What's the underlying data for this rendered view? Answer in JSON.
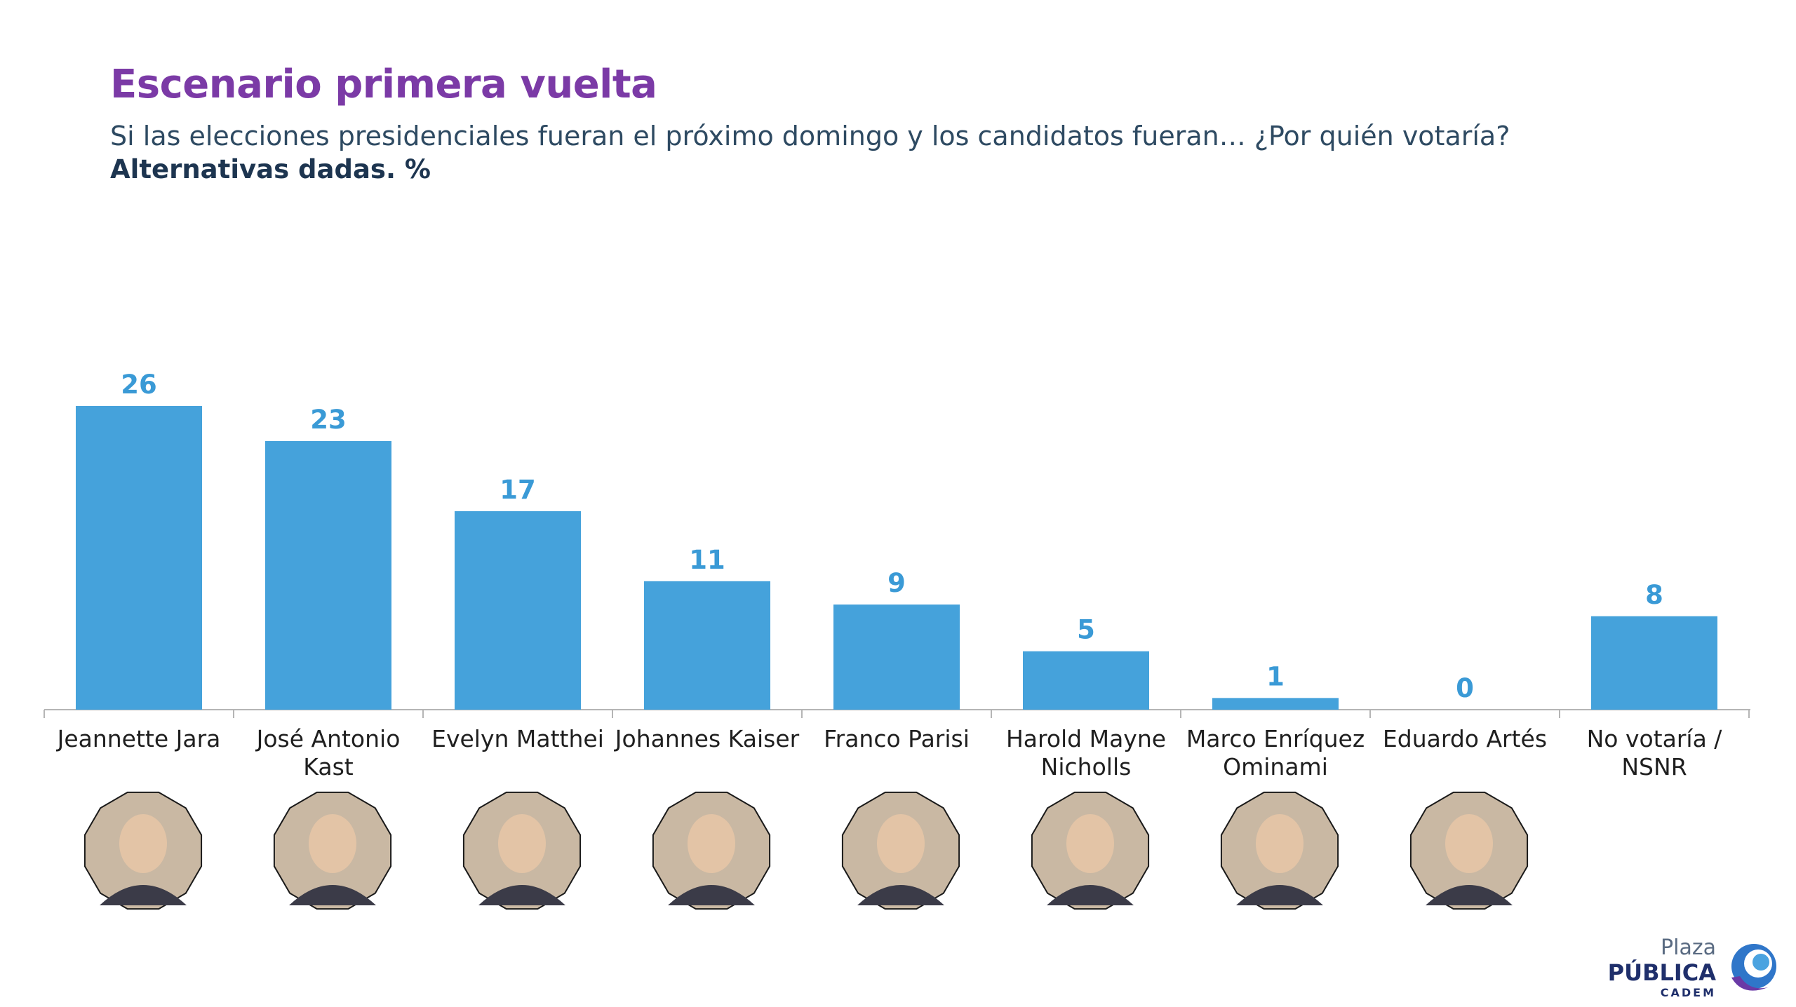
{
  "header": {
    "title": "Escenario primera vuelta",
    "subtitle": "Si las elecciones presidenciales fueran el próximo domingo y los candidatos fueran… ¿Por quién votaría?",
    "note": "Alternativas dadas. %"
  },
  "colors": {
    "title": "#7b3aa6",
    "bar": "#45a2db",
    "value_label": "#3a9ad6",
    "axis": "#b5b5b5"
  },
  "logo": {
    "line1": "Plaza",
    "line2": "PÚBLICA",
    "line3": "CADEM"
  },
  "chart_data": {
    "type": "bar",
    "categories": [
      [
        "Jeannette Jara"
      ],
      [
        "José Antonio",
        "Kast"
      ],
      [
        "Evelyn Matthei"
      ],
      [
        "Johannes Kaiser"
      ],
      [
        "Franco Parisi"
      ],
      [
        "Harold Mayne",
        "Nicholls"
      ],
      [
        "Marco Enríquez",
        "Ominami"
      ],
      [
        "Eduardo Artés"
      ],
      [
        "No votaría /",
        "NSNR"
      ]
    ],
    "values": [
      26,
      23,
      17,
      11,
      9,
      5,
      1,
      0,
      8
    ],
    "photos": [
      true,
      true,
      true,
      true,
      true,
      true,
      true,
      true,
      false
    ],
    "ylim": [
      0,
      30
    ],
    "grid": false
  }
}
